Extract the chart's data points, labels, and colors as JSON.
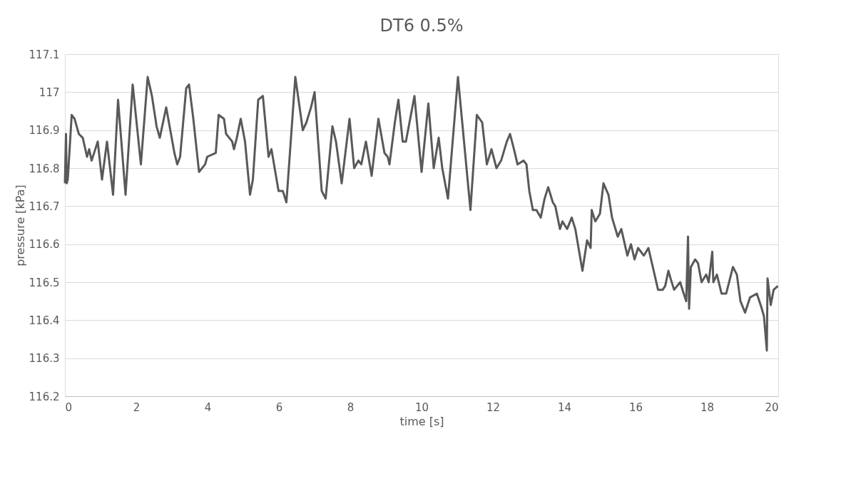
{
  "chart_data": {
    "type": "line",
    "title": "DT6 0.5%",
    "xlabel": "time [s]",
    "ylabel": "pressure [kPa]",
    "xlim": [
      0,
      20
    ],
    "xticks": [
      0,
      2,
      4,
      6,
      8,
      10,
      12,
      14,
      16,
      18,
      20
    ],
    "ylim": [
      116.2,
      117.1
    ],
    "yticks": [
      116.2,
      116.3,
      116.4,
      116.5,
      116.6,
      116.7,
      116.8,
      116.9,
      117,
      117.1
    ],
    "grid": "y",
    "marker": "none",
    "line_style": "solid",
    "series": [
      {
        "color": "#595959",
        "x": [
          0,
          0.03,
          0.05,
          0.08,
          0.19,
          0.27,
          0.39,
          0.5,
          0.62,
          0.68,
          0.75,
          0.92,
          1.04,
          1.18,
          1.35,
          1.49,
          1.7,
          1.9,
          2.13,
          2.32,
          2.44,
          2.57,
          2.66,
          2.84,
          3.07,
          3.15,
          3.23,
          3.4,
          3.48,
          3.6,
          3.76,
          3.93,
          3.99,
          4.23,
          4.31,
          4.46,
          4.52,
          4.69,
          4.74,
          4.82,
          4.93,
          5.05,
          5.19,
          5.27,
          5.42,
          5.55,
          5.71,
          5.79,
          5.99,
          6.11,
          6.21,
          6.46,
          6.67,
          6.77,
          6.9,
          7.0,
          7.2,
          7.31,
          7.5,
          7.6,
          7.76,
          7.98,
          8.11,
          8.23,
          8.31,
          8.44,
          8.6,
          8.79,
          8.96,
          9.05,
          9.1,
          9.25,
          9.35,
          9.47,
          9.56,
          9.8,
          10.0,
          10.19,
          10.34,
          10.48,
          10.58,
          10.74,
          11.02,
          11.37,
          11.55,
          11.7,
          11.83,
          11.96,
          12.1,
          12.23,
          12.39,
          12.48,
          12.59,
          12.69,
          12.86,
          12.94,
          13.02,
          13.12,
          13.22,
          13.34,
          13.45,
          13.55,
          13.68,
          13.75,
          13.88,
          13.95,
          14.08,
          14.21,
          14.31,
          14.51,
          14.64,
          14.74,
          14.77,
          14.87,
          15.0,
          15.1,
          15.24,
          15.34,
          15.5,
          15.6,
          15.77,
          15.87,
          15.97,
          16.07,
          16.23,
          16.36,
          16.63,
          16.76,
          16.83,
          16.92,
          16.98,
          17.08,
          17.25,
          17.35,
          17.42,
          17.47,
          17.5,
          17.55,
          17.67,
          17.75,
          17.85,
          17.98,
          18.05,
          18.15,
          18.18,
          18.28,
          18.41,
          18.54,
          18.73,
          18.84,
          18.94,
          19.07,
          19.21,
          19.4,
          19.54,
          19.6,
          19.68,
          19.7,
          19.79,
          19.87,
          19.99
        ],
        "values": [
          116.76,
          116.89,
          116.76,
          116.77,
          116.94,
          116.93,
          116.89,
          116.88,
          116.83,
          116.85,
          116.82,
          116.87,
          116.77,
          116.87,
          116.73,
          116.98,
          116.73,
          117.02,
          116.81,
          117.04,
          116.99,
          116.91,
          116.88,
          116.96,
          116.84,
          116.81,
          116.83,
          117.01,
          117.02,
          116.93,
          116.79,
          116.81,
          116.83,
          116.84,
          116.94,
          116.93,
          116.89,
          116.87,
          116.85,
          116.88,
          116.93,
          116.87,
          116.73,
          116.77,
          116.98,
          116.99,
          116.83,
          116.85,
          116.74,
          116.74,
          116.71,
          117.04,
          116.9,
          116.92,
          116.96,
          117.0,
          116.74,
          116.72,
          116.91,
          116.87,
          116.76,
          116.93,
          116.8,
          116.82,
          116.81,
          116.87,
          116.78,
          116.93,
          116.84,
          116.83,
          116.81,
          116.92,
          116.98,
          116.87,
          116.87,
          116.99,
          116.79,
          116.97,
          116.8,
          116.88,
          116.8,
          116.72,
          117.04,
          116.69,
          116.94,
          116.92,
          116.81,
          116.85,
          116.8,
          116.82,
          116.87,
          116.89,
          116.85,
          116.81,
          116.82,
          116.81,
          116.74,
          116.69,
          116.69,
          116.67,
          116.72,
          116.75,
          116.71,
          116.7,
          116.64,
          116.66,
          116.64,
          116.67,
          116.64,
          116.53,
          116.61,
          116.59,
          116.69,
          116.66,
          116.68,
          116.76,
          116.73,
          116.67,
          116.62,
          116.64,
          116.57,
          116.6,
          116.56,
          116.59,
          116.57,
          116.59,
          116.48,
          116.48,
          116.49,
          116.53,
          116.51,
          116.48,
          116.5,
          116.47,
          116.45,
          116.62,
          116.43,
          116.54,
          116.56,
          116.55,
          116.5,
          116.52,
          116.5,
          116.58,
          116.5,
          116.52,
          116.47,
          116.47,
          116.54,
          116.52,
          116.45,
          116.42,
          116.46,
          116.47,
          116.43,
          116.41,
          116.32,
          116.51,
          116.44,
          116.48,
          116.49
        ]
      }
    ]
  }
}
